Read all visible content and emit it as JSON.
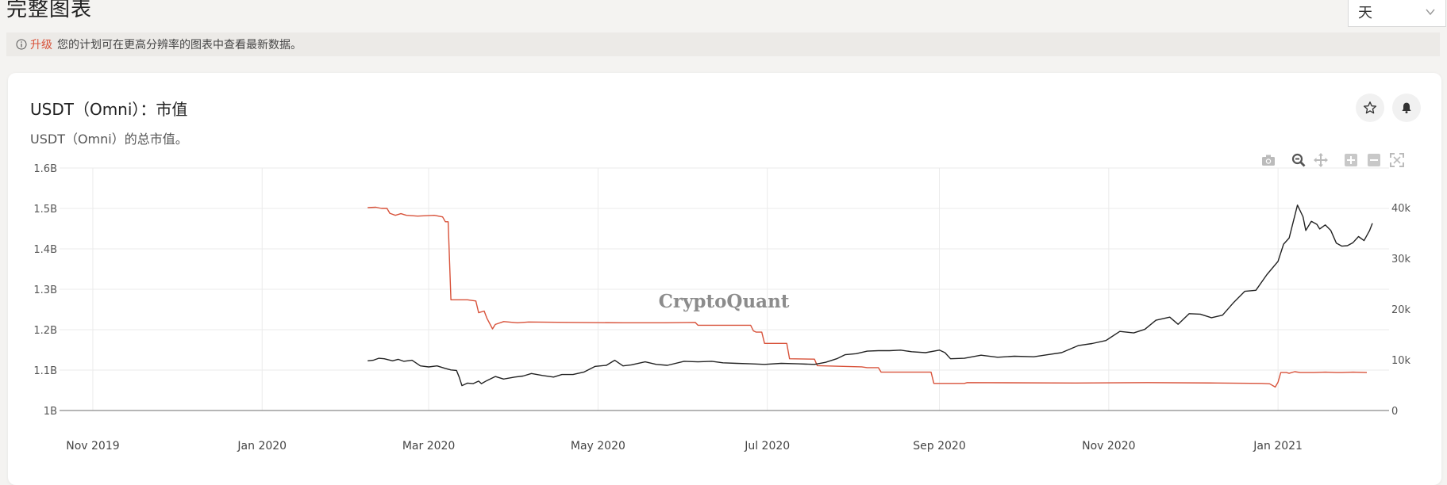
{
  "header": {
    "title": "完整图表",
    "period_select": {
      "value": "天"
    }
  },
  "notice": {
    "upgrade_link": "升级",
    "text": "您的计划可在更高分辨率的图表中查看最新数据。"
  },
  "card": {
    "title": "USDT（Omni）：市值",
    "subtitle": "USDT（Omni）的总市值。",
    "star_button": "star-icon",
    "bell_button": "bell-icon",
    "toolbar": [
      "camera-icon",
      "zoom-icon",
      "pan-icon",
      "zoom-in-icon",
      "zoom-out-icon",
      "autoscale-icon"
    ]
  },
  "chart_data": {
    "type": "line",
    "watermark": "CryptoQuant",
    "x_ticks": [
      "Nov 2019",
      "Jan 2020",
      "Mar 2020",
      "May 2020",
      "Jul 2020",
      "Sep 2020",
      "Nov 2020",
      "Jan 2021"
    ],
    "xlim": [
      "2019-10-20",
      "2021-02-10"
    ],
    "y_left": {
      "ticks": [
        "1B",
        "1.1B",
        "1.2B",
        "1.3B",
        "1.4B",
        "1.5B",
        "1.6B"
      ],
      "ylim": [
        1.0,
        1.6
      ],
      "unit": "B"
    },
    "y_right": {
      "ticks": [
        "0",
        "10k",
        "20k",
        "30k",
        "40k"
      ],
      "ylim": [
        0,
        40000
      ]
    },
    "colors": {
      "market_cap": "#d8523a",
      "price": "#222222",
      "grid": "#ebebeb",
      "zero_line": "#8a8a8a"
    },
    "series": [
      {
        "axis": "left",
        "color": "#d8523a",
        "points": [
          [
            "2020-02-08",
            1.502
          ],
          [
            "2020-02-11",
            1.503
          ],
          [
            "2020-02-13",
            1.5
          ],
          [
            "2020-02-15",
            1.5
          ],
          [
            "2020-02-16",
            1.488
          ],
          [
            "2020-02-18",
            1.483
          ],
          [
            "2020-02-20",
            1.487
          ],
          [
            "2020-02-22",
            1.483
          ],
          [
            "2020-02-26",
            1.481
          ],
          [
            "2020-03-03",
            1.483
          ],
          [
            "2020-03-06",
            1.479
          ],
          [
            "2020-03-07",
            1.467
          ],
          [
            "2020-03-08",
            1.467
          ],
          [
            "2020-03-09",
            1.274
          ],
          [
            "2020-03-15",
            1.274
          ],
          [
            "2020-03-18",
            1.271
          ],
          [
            "2020-03-19",
            1.242
          ],
          [
            "2020-03-21",
            1.246
          ],
          [
            "2020-03-22",
            1.228
          ],
          [
            "2020-03-24",
            1.202
          ],
          [
            "2020-03-25",
            1.213
          ],
          [
            "2020-03-28",
            1.22
          ],
          [
            "2020-04-02",
            1.217
          ],
          [
            "2020-04-06",
            1.219
          ],
          [
            "2020-04-20",
            1.218
          ],
          [
            "2020-05-10",
            1.217
          ],
          [
            "2020-05-25",
            1.217
          ],
          [
            "2020-06-05",
            1.218
          ],
          [
            "2020-06-06",
            1.211
          ],
          [
            "2020-06-25",
            1.211
          ],
          [
            "2020-06-26",
            1.197
          ],
          [
            "2020-06-27",
            1.194
          ],
          [
            "2020-06-29",
            1.194
          ],
          [
            "2020-06-30",
            1.166
          ],
          [
            "2020-07-08",
            1.166
          ],
          [
            "2020-07-09",
            1.128
          ],
          [
            "2020-07-18",
            1.127
          ],
          [
            "2020-07-19",
            1.111
          ],
          [
            "2020-08-04",
            1.108
          ],
          [
            "2020-08-06",
            1.106
          ],
          [
            "2020-08-10",
            1.106
          ],
          [
            "2020-08-11",
            1.095
          ],
          [
            "2020-08-29",
            1.095
          ],
          [
            "2020-08-30",
            1.067
          ],
          [
            "2020-09-10",
            1.067
          ],
          [
            "2020-09-11",
            1.069
          ],
          [
            "2020-10-20",
            1.068
          ],
          [
            "2020-11-15",
            1.069
          ],
          [
            "2020-12-10",
            1.068
          ],
          [
            "2020-12-26",
            1.067
          ],
          [
            "2020-12-29",
            1.066
          ],
          [
            "2020-12-31",
            1.058
          ],
          [
            "2021-01-01",
            1.07
          ],
          [
            "2021-01-02",
            1.094
          ],
          [
            "2021-01-04",
            1.094
          ],
          [
            "2021-01-05",
            1.092
          ],
          [
            "2021-01-07",
            1.096
          ],
          [
            "2021-01-09",
            1.094
          ],
          [
            "2021-01-14",
            1.094
          ],
          [
            "2021-01-18",
            1.095
          ],
          [
            "2021-01-22",
            1.094
          ],
          [
            "2021-01-24",
            1.094
          ],
          [
            "2021-01-28",
            1.095
          ],
          [
            "2021-02-02",
            1.094
          ]
        ]
      },
      {
        "axis": "right",
        "color": "#222222",
        "points": [
          [
            "2020-02-08",
            9800
          ],
          [
            "2020-02-10",
            9900
          ],
          [
            "2020-02-12",
            10300
          ],
          [
            "2020-02-14",
            10200
          ],
          [
            "2020-02-17",
            9800
          ],
          [
            "2020-02-19",
            10100
          ],
          [
            "2020-02-21",
            9700
          ],
          [
            "2020-02-24",
            9900
          ],
          [
            "2020-02-27",
            8800
          ],
          [
            "2020-03-01",
            8600
          ],
          [
            "2020-03-04",
            8800
          ],
          [
            "2020-03-07",
            8300
          ],
          [
            "2020-03-09",
            8000
          ],
          [
            "2020-03-11",
            7900
          ],
          [
            "2020-03-12",
            6600
          ],
          [
            "2020-03-13",
            4900
          ],
          [
            "2020-03-15",
            5400
          ],
          [
            "2020-03-17",
            5300
          ],
          [
            "2020-03-19",
            5800
          ],
          [
            "2020-03-20",
            5300
          ],
          [
            "2020-03-22",
            5900
          ],
          [
            "2020-03-25",
            6700
          ],
          [
            "2020-03-28",
            6200
          ],
          [
            "2020-04-01",
            6600
          ],
          [
            "2020-04-04",
            6800
          ],
          [
            "2020-04-07",
            7300
          ],
          [
            "2020-04-11",
            6900
          ],
          [
            "2020-04-15",
            6600
          ],
          [
            "2020-04-18",
            7100
          ],
          [
            "2020-04-22",
            7100
          ],
          [
            "2020-04-26",
            7600
          ],
          [
            "2020-04-30",
            8700
          ],
          [
            "2020-05-04",
            8900
          ],
          [
            "2020-05-07",
            9900
          ],
          [
            "2020-05-10",
            8800
          ],
          [
            "2020-05-13",
            9000
          ],
          [
            "2020-05-18",
            9600
          ],
          [
            "2020-05-22",
            9100
          ],
          [
            "2020-05-26",
            8900
          ],
          [
            "2020-06-01",
            9700
          ],
          [
            "2020-06-06",
            9600
          ],
          [
            "2020-06-11",
            9700
          ],
          [
            "2020-06-15",
            9400
          ],
          [
            "2020-06-20",
            9300
          ],
          [
            "2020-06-25",
            9200
          ],
          [
            "2020-06-30",
            9100
          ],
          [
            "2020-07-06",
            9300
          ],
          [
            "2020-07-12",
            9200
          ],
          [
            "2020-07-18",
            9100
          ],
          [
            "2020-07-22",
            9500
          ],
          [
            "2020-07-26",
            10200
          ],
          [
            "2020-07-29",
            11000
          ],
          [
            "2020-08-02",
            11200
          ],
          [
            "2020-08-06",
            11700
          ],
          [
            "2020-08-10",
            11800
          ],
          [
            "2020-08-14",
            11800
          ],
          [
            "2020-08-18",
            11900
          ],
          [
            "2020-08-22",
            11600
          ],
          [
            "2020-08-27",
            11400
          ],
          [
            "2020-09-01",
            11900
          ],
          [
            "2020-09-03",
            11400
          ],
          [
            "2020-09-05",
            10200
          ],
          [
            "2020-09-10",
            10300
          ],
          [
            "2020-09-16",
            10900
          ],
          [
            "2020-09-22",
            10500
          ],
          [
            "2020-09-28",
            10700
          ],
          [
            "2020-10-05",
            10600
          ],
          [
            "2020-10-10",
            11000
          ],
          [
            "2020-10-15",
            11400
          ],
          [
            "2020-10-21",
            12800
          ],
          [
            "2020-10-26",
            13200
          ],
          [
            "2020-10-31",
            13800
          ],
          [
            "2020-11-05",
            15600
          ],
          [
            "2020-11-10",
            15300
          ],
          [
            "2020-11-14",
            16000
          ],
          [
            "2020-11-18",
            17800
          ],
          [
            "2020-11-23",
            18400
          ],
          [
            "2020-11-26",
            17000
          ],
          [
            "2020-11-30",
            19100
          ],
          [
            "2020-12-04",
            19000
          ],
          [
            "2020-12-08",
            18300
          ],
          [
            "2020-12-12",
            18800
          ],
          [
            "2020-12-16",
            21300
          ],
          [
            "2020-12-20",
            23500
          ],
          [
            "2020-12-24",
            23700
          ],
          [
            "2020-12-28",
            26800
          ],
          [
            "2021-01-01",
            29400
          ],
          [
            "2021-01-03",
            32800
          ],
          [
            "2021-01-05",
            34000
          ],
          [
            "2021-01-08",
            40500
          ],
          [
            "2021-01-10",
            38200
          ],
          [
            "2021-01-11",
            35500
          ],
          [
            "2021-01-13",
            37300
          ],
          [
            "2021-01-15",
            36700
          ],
          [
            "2021-01-16",
            35800
          ],
          [
            "2021-01-18",
            36600
          ],
          [
            "2021-01-20",
            35500
          ],
          [
            "2021-01-22",
            33000
          ],
          [
            "2021-01-24",
            32400
          ],
          [
            "2021-01-26",
            32500
          ],
          [
            "2021-01-28",
            33100
          ],
          [
            "2021-01-30",
            34300
          ],
          [
            "2021-02-01",
            33500
          ],
          [
            "2021-02-03",
            35500
          ],
          [
            "2021-02-04",
            36900
          ]
        ]
      }
    ]
  }
}
